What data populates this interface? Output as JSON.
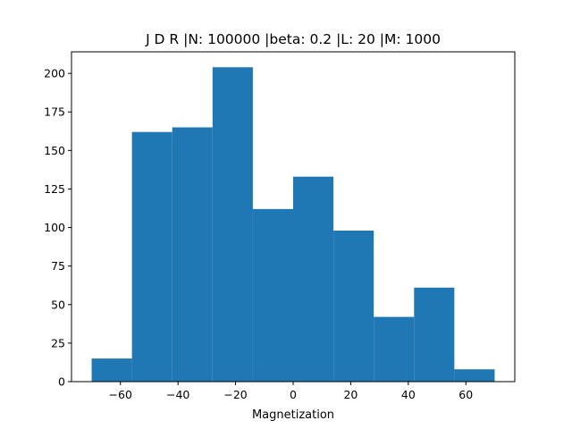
{
  "chart_data": {
    "type": "histogram",
    "title": "J D  R |N: 100000 |beta: 0.2 |L: 20 |M: 1000",
    "xlabel": "Magnetization",
    "ylabel": "",
    "bar_color": "#1f77b4",
    "bins": [
      {
        "x0": -70,
        "x1": -56,
        "count": 15
      },
      {
        "x0": -56,
        "x1": -42,
        "count": 162
      },
      {
        "x0": -42,
        "x1": -28,
        "count": 165
      },
      {
        "x0": -28,
        "x1": -14,
        "count": 204
      },
      {
        "x0": -14,
        "x1": 0,
        "count": 112
      },
      {
        "x0": 0,
        "x1": 14,
        "count": 133
      },
      {
        "x0": 14,
        "x1": 28,
        "count": 98
      },
      {
        "x0": 28,
        "x1": 42,
        "count": 42
      },
      {
        "x0": 42,
        "x1": 56,
        "count": 61
      },
      {
        "x0": 56,
        "x1": 70,
        "count": 8
      }
    ],
    "xlim": [
      -77,
      77
    ],
    "ylim": [
      0,
      214
    ],
    "xticks": [
      -60,
      -40,
      -20,
      0,
      20,
      40,
      60
    ],
    "xtick_labels": [
      "−60",
      "−40",
      "−20",
      "0",
      "20",
      "40",
      "60"
    ],
    "yticks": [
      0,
      25,
      50,
      75,
      100,
      125,
      150,
      175,
      200
    ],
    "ytick_labels": [
      "0",
      "25",
      "50",
      "75",
      "100",
      "125",
      "150",
      "175",
      "200"
    ],
    "grid": false
  }
}
